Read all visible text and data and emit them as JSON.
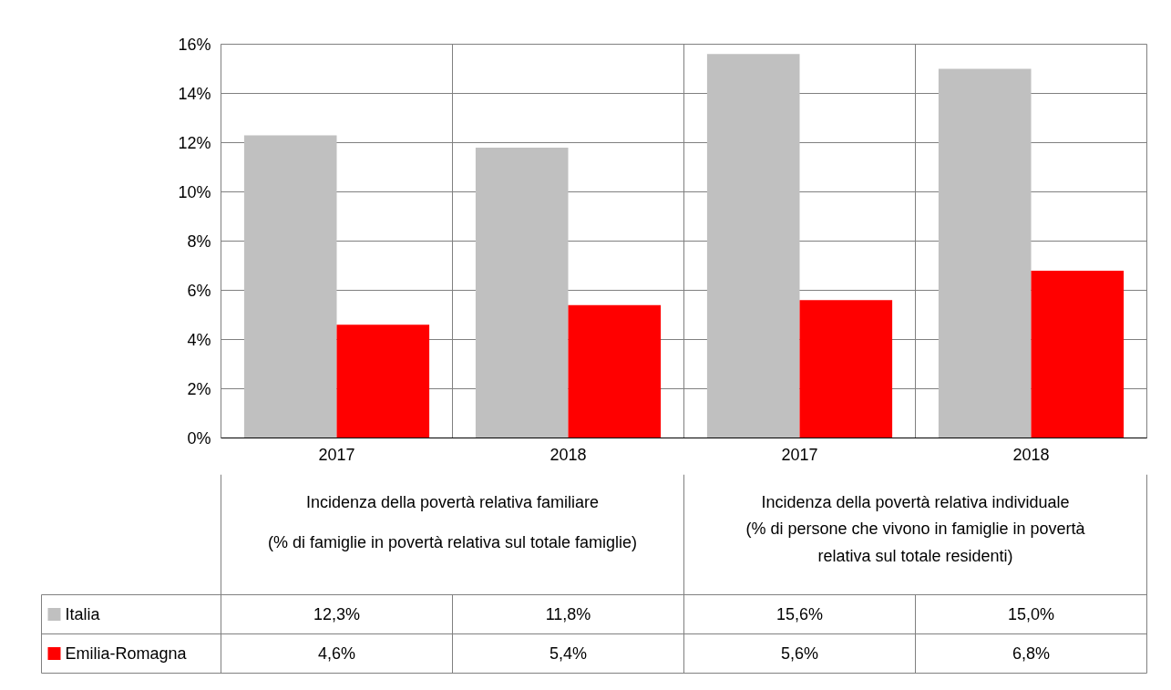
{
  "chart_data": {
    "type": "bar",
    "categories": [
      "2017",
      "2018",
      "2017",
      "2018"
    ],
    "series": [
      {
        "name": "Italia",
        "color": "#c0c0c0",
        "values": [
          12.3,
          11.8,
          15.6,
          15.0
        ],
        "value_labels": [
          "12,3%",
          "11,8%",
          "15,6%",
          "15,0%"
        ]
      },
      {
        "name": "Emilia-Romagna",
        "color": "#ff0000",
        "values": [
          4.6,
          5.4,
          5.6,
          6.8
        ],
        "value_labels": [
          "4,6%",
          "5,4%",
          "5,6%",
          "6,8%"
        ]
      }
    ],
    "ylim": [
      0,
      16
    ],
    "yticks": [
      {
        "value": 0,
        "label": "0%"
      },
      {
        "value": 2,
        "label": "2%"
      },
      {
        "value": 4,
        "label": "4%"
      },
      {
        "value": 6,
        "label": "6%"
      },
      {
        "value": 8,
        "label": "8%"
      },
      {
        "value": 10,
        "label": "10%"
      },
      {
        "value": 12,
        "label": "12%"
      },
      {
        "value": 14,
        "label": "14%"
      },
      {
        "value": 16,
        "label": "16%"
      }
    ],
    "annotations": [
      "Incidenza della povertà relativa familiare",
      "(% di famiglie in povertà relativa sul totale famiglie)",
      "Incidenza della povertà relativa individuale",
      "(% di persone che vivono in famiglie in povertà\nrelativa sul totale residenti)"
    ],
    "grid": true,
    "legend": "bottom"
  }
}
